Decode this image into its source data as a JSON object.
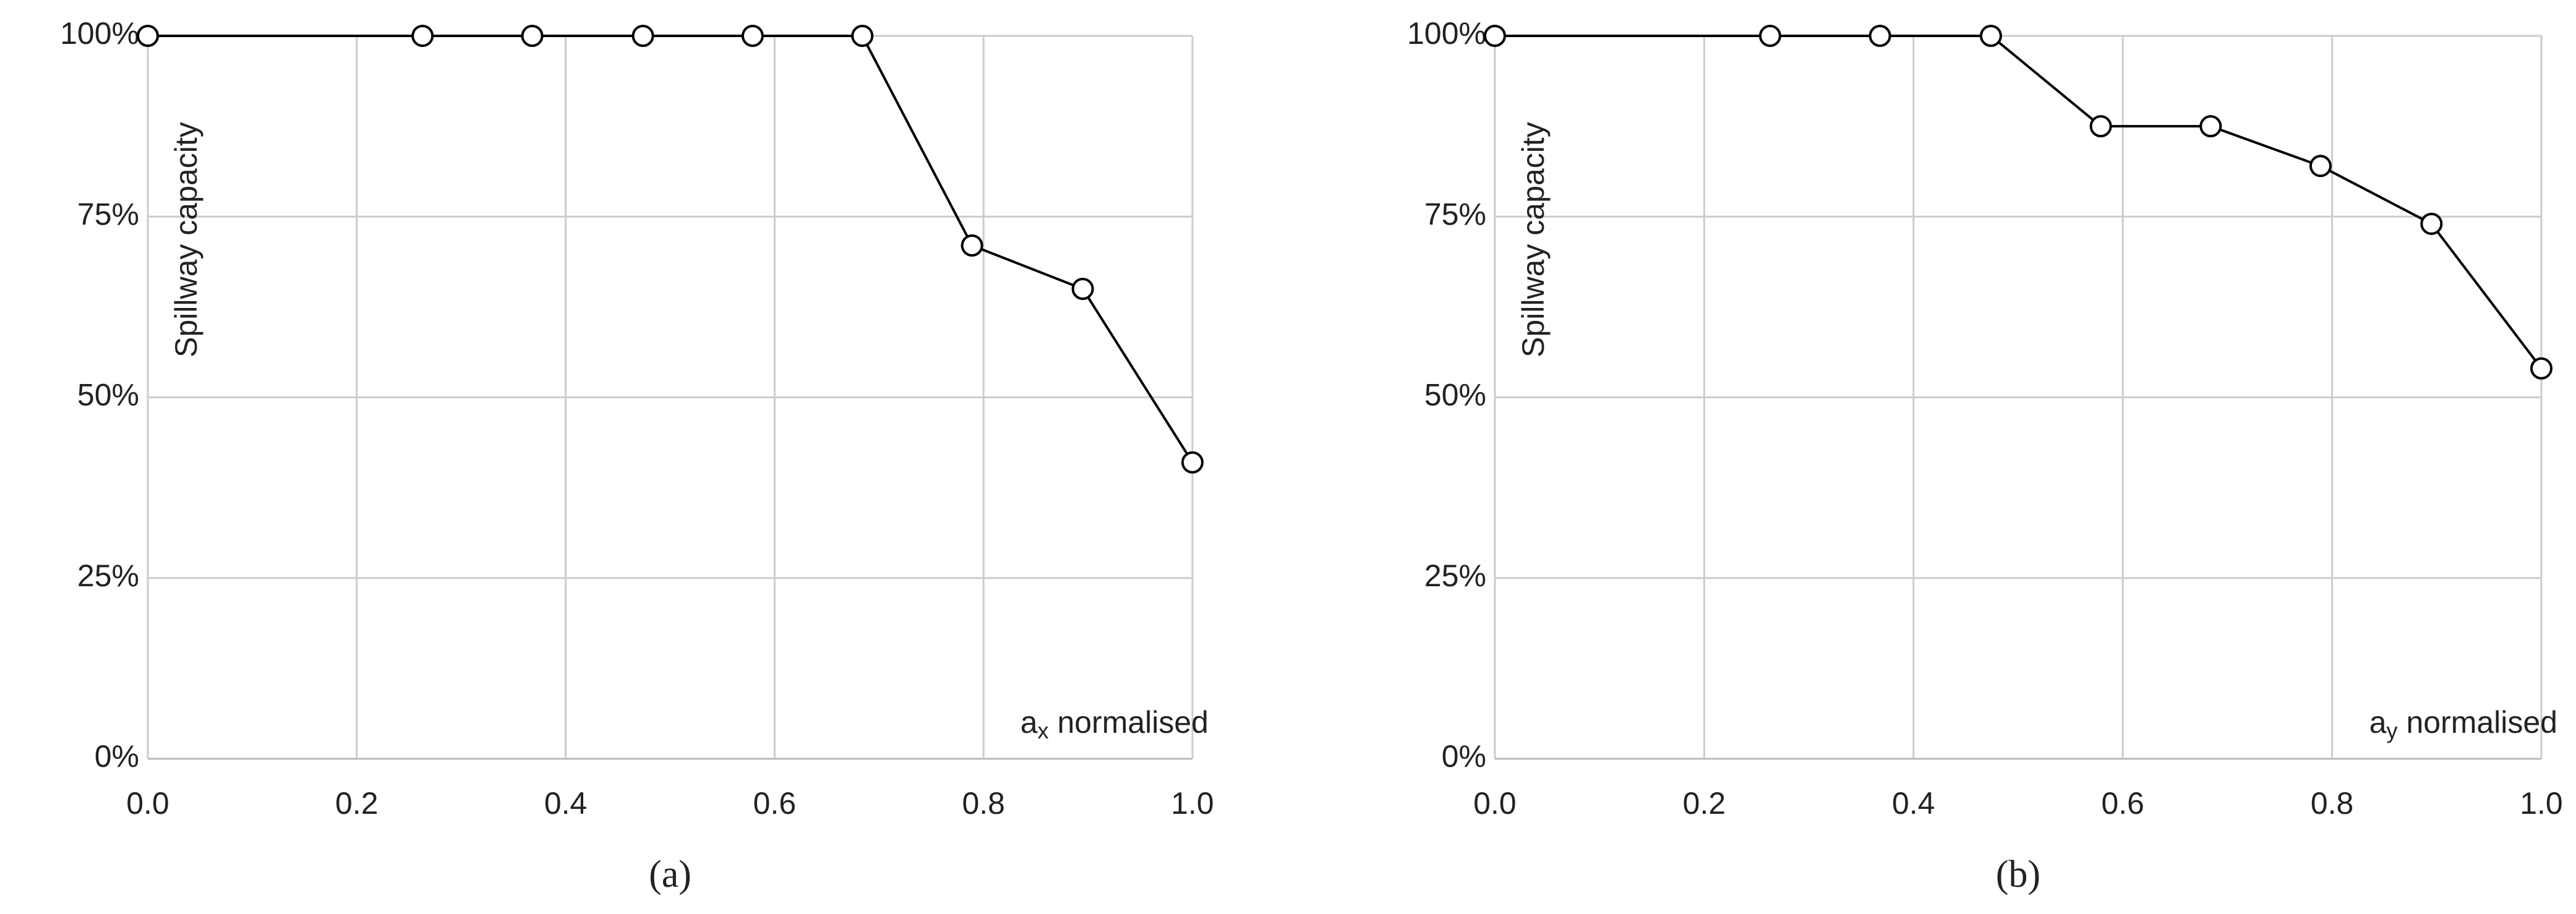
{
  "chart_data": [
    {
      "type": "line",
      "panel": "(a)",
      "ylabel": "Spillway capacity",
      "xlabel": {
        "base": "a",
        "sub": "x",
        "rest": " normalised"
      },
      "x": [
        0,
        0.263,
        0.368,
        0.474,
        0.579,
        0.684,
        0.789,
        0.895,
        1
      ],
      "series": [
        {
          "color": "#000000",
          "values": [
            100,
            100,
            100,
            100,
            100,
            100,
            71,
            65,
            41
          ]
        }
      ],
      "xlim": [
        0,
        1
      ],
      "ylim": [
        0,
        100
      ],
      "xticks": [
        {
          "value": 0,
          "label": "0.0"
        },
        0.2,
        0.4,
        0.6,
        0.8,
        {
          "value": 1,
          "label": "1.0"
        }
      ],
      "yticks": [
        {
          "value": 0,
          "label": "0%"
        },
        {
          "value": 25,
          "label": "25%"
        },
        {
          "value": 50,
          "label": "50%"
        },
        {
          "value": 75,
          "label": "75%"
        },
        {
          "value": 100,
          "label": "100%"
        }
      ],
      "grid": true
    },
    {
      "type": "line",
      "panel": "(b)",
      "ylabel": "Spillway capacity",
      "xlabel": {
        "base": "a",
        "sub": "y",
        "rest": " normalised"
      },
      "x": [
        0,
        0.263,
        0.368,
        0.474,
        0.579,
        0.684,
        0.789,
        0.895,
        1
      ],
      "series": [
        {
          "color": "#000000",
          "values": [
            100,
            100,
            100,
            100,
            87.5,
            87.5,
            82,
            74,
            54
          ]
        }
      ],
      "xlim": [
        0,
        1
      ],
      "ylim": [
        0,
        100
      ],
      "xticks": [
        {
          "value": 0,
          "label": "0.0"
        },
        0.2,
        0.4,
        0.6,
        0.8,
        {
          "value": 1,
          "label": "1.0"
        }
      ],
      "yticks": [
        {
          "value": 0,
          "label": "0%"
        },
        {
          "value": 25,
          "label": "25%"
        },
        {
          "value": 50,
          "label": "50%"
        },
        {
          "value": 75,
          "label": "75%"
        },
        {
          "value": 100,
          "label": "100%"
        }
      ],
      "grid": true
    }
  ]
}
